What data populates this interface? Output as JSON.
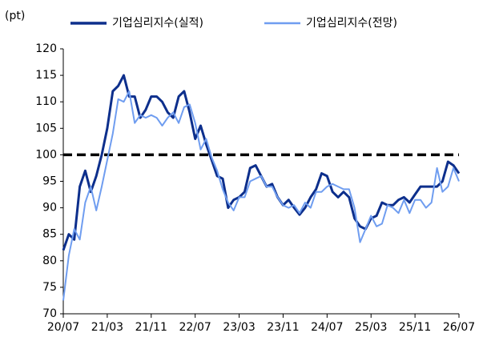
{
  "chart_data": {
    "type": "line",
    "y_unit": "(pt)",
    "categories": [
      "20/07",
      null,
      null,
      null,
      null,
      null,
      null,
      null,
      "21/03",
      null,
      null,
      null,
      null,
      null,
      null,
      null,
      "21/11",
      null,
      null,
      null,
      null,
      null,
      null,
      null,
      "22/07",
      null,
      null,
      null,
      null,
      null,
      null,
      null,
      "23/03",
      null,
      null,
      null,
      null,
      null,
      null,
      null,
      "23/11",
      null,
      null,
      null,
      null,
      null,
      null,
      null,
      "24/07",
      null,
      null,
      null,
      null,
      null,
      null,
      null,
      "25/03",
      null,
      null,
      null,
      null,
      null,
      null,
      null,
      "25/11",
      null,
      null,
      null,
      null,
      null,
      null,
      null,
      "26/07"
    ],
    "series": [
      {
        "name": "기업심리지수(실적)",
        "color": "#0d2f8c",
        "width": 3,
        "values": [
          82,
          85,
          84,
          94,
          97,
          93,
          96,
          100,
          105,
          112,
          113,
          115,
          111,
          111,
          107,
          108.5,
          111,
          111,
          110,
          108,
          107,
          111,
          112,
          108,
          103,
          105.5,
          102,
          99,
          96,
          95.5,
          90,
          91.5,
          92,
          93,
          97.5,
          98,
          96,
          94,
          94.5,
          92,
          90.5,
          91.5,
          90,
          88.7,
          90,
          92,
          93.5,
          96.5,
          96,
          93,
          92,
          93,
          92,
          88,
          86.5,
          86,
          88,
          88.5,
          91,
          90.5,
          90.5,
          91.5,
          92,
          91,
          92.5,
          94,
          94,
          94,
          94,
          95,
          98.7,
          98,
          96.5
        ]
      },
      {
        "name": "기업심리지수(전망)",
        "color": "#6f9df0",
        "width": 2,
        "values": [
          72.5,
          81,
          86,
          84,
          91,
          94,
          89.5,
          94,
          99,
          104,
          110.5,
          110,
          112,
          106,
          107.5,
          107,
          107.5,
          107,
          105.5,
          107,
          108,
          106,
          109,
          109.5,
          106,
          101,
          103,
          99.5,
          97,
          93.5,
          91,
          89.5,
          92,
          92,
          95,
          95.5,
          96,
          94,
          94,
          92,
          90.5,
          90,
          90.5,
          89,
          91,
          90,
          93,
          93,
          94,
          94.5,
          94,
          93.5,
          93.5,
          90,
          83.5,
          86,
          88.5,
          86.5,
          87,
          90.5,
          90,
          89,
          91.5,
          89,
          91.5,
          91.5,
          90,
          91,
          97.5,
          93,
          94,
          97.5,
          95
        ]
      }
    ],
    "reference_line": 100,
    "ylim": [
      70,
      120
    ],
    "yticks": [
      70,
      75,
      80,
      85,
      90,
      95,
      100,
      105,
      110,
      115,
      120
    ],
    "grid": false
  }
}
